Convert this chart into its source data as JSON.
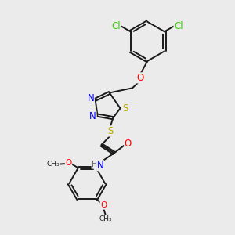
{
  "background_color": "#ebebeb",
  "bond_color": "#1a1a1a",
  "N_color": "#0000ff",
  "O_color": "#ff0000",
  "S_color": "#bbaa00",
  "Cl_color": "#33cc00",
  "H_color": "#666666",
  "figsize": [
    3.0,
    3.0
  ],
  "dpi": 100,
  "xlim": [
    0,
    10
  ],
  "ylim": [
    0,
    10
  ]
}
